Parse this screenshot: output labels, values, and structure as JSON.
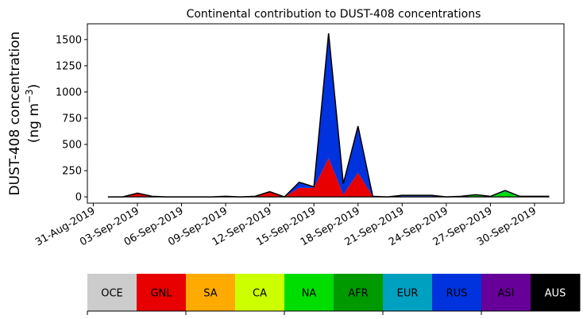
{
  "chart_data": {
    "type": "area",
    "title": "Continental contribution to DUST-408 concentrations",
    "ylabel_line1": "DUST-408 concentration",
    "ylabel_line2": "(ng m",
    "ylabel_sup": "−3",
    "ylabel_close": ")",
    "ylim": [
      -60,
      1650
    ],
    "yticks": [
      0,
      250,
      500,
      750,
      1000,
      1250,
      1500
    ],
    "xticks": [
      "31-Aug-2019",
      "03-Sep-2019",
      "06-Sep-2019",
      "09-Sep-2019",
      "12-Sep-2019",
      "15-Sep-2019",
      "18-Sep-2019",
      "21-Sep-2019",
      "24-Sep-2019",
      "27-Sep-2019",
      "30-Sep-2019"
    ],
    "x": [
      "2019-09-01",
      "2019-09-02",
      "2019-09-03",
      "2019-09-04",
      "2019-09-05",
      "2019-09-06",
      "2019-09-07",
      "2019-09-08",
      "2019-09-09",
      "2019-09-10",
      "2019-09-11",
      "2019-09-12",
      "2019-09-13",
      "2019-09-14",
      "2019-09-15",
      "2019-09-16",
      "2019-09-17",
      "2019-09-18",
      "2019-09-19",
      "2019-09-20",
      "2019-09-21",
      "2019-09-22",
      "2019-09-23",
      "2019-09-24",
      "2019-09-25",
      "2019-09-26",
      "2019-09-27",
      "2019-09-28",
      "2019-09-29",
      "2019-09-30",
      "2019-10-01"
    ],
    "x_tick_start": "2019-08-31",
    "x_tick_step_days": 3,
    "series": [
      {
        "name": "GNL",
        "color": "#e80000",
        "values": [
          0,
          0,
          35,
          5,
          0,
          0,
          0,
          0,
          5,
          0,
          5,
          45,
          0,
          85,
          85,
          370,
          20,
          230,
          5,
          0,
          0,
          5,
          0,
          0,
          0,
          0,
          0,
          0,
          0,
          0,
          0
        ]
      },
      {
        "name": "NA",
        "color": "#00dd00",
        "values": [
          0,
          0,
          0,
          0,
          0,
          0,
          0,
          0,
          0,
          0,
          0,
          0,
          0,
          0,
          0,
          0,
          0,
          0,
          0,
          0,
          0,
          0,
          0,
          0,
          5,
          15,
          0,
          50,
          0,
          0,
          0
        ]
      },
      {
        "name": "EUR",
        "color": "#00a0c0",
        "values": [
          0,
          0,
          0,
          0,
          0,
          0,
          0,
          0,
          0,
          0,
          0,
          0,
          0,
          0,
          0,
          0,
          0,
          0,
          0,
          0,
          5,
          0,
          5,
          0,
          0,
          0,
          0,
          5,
          0,
          0,
          0
        ]
      },
      {
        "name": "RUS",
        "color": "#0033dd",
        "values": [
          0,
          0,
          0,
          0,
          0,
          0,
          0,
          0,
          0,
          0,
          0,
          5,
          0,
          50,
          5,
          1180,
          100,
          440,
          0,
          0,
          5,
          5,
          5,
          0,
          0,
          0,
          0,
          0,
          0,
          0,
          0
        ]
      },
      {
        "name": "ASI",
        "color": "#660099",
        "values": [
          0,
          0,
          0,
          0,
          0,
          0,
          0,
          0,
          0,
          0,
          0,
          0,
          0,
          5,
          5,
          10,
          5,
          5,
          0,
          0,
          5,
          5,
          5,
          0,
          0,
          5,
          5,
          5,
          5,
          5,
          5
        ]
      }
    ]
  },
  "legend": [
    {
      "label": "OCE",
      "color": "#cccccc",
      "text_color": "#000000"
    },
    {
      "label": "GNL",
      "color": "#e80000",
      "text_color": "#000000"
    },
    {
      "label": "SA",
      "color": "#ffaa00",
      "text_color": "#000000"
    },
    {
      "label": "CA",
      "color": "#ccff00",
      "text_color": "#000000"
    },
    {
      "label": "NA",
      "color": "#00dd00",
      "text_color": "#000000"
    },
    {
      "label": "AFR",
      "color": "#009900",
      "text_color": "#000000"
    },
    {
      "label": "EUR",
      "color": "#00a0c0",
      "text_color": "#000000"
    },
    {
      "label": "RUS",
      "color": "#0033dd",
      "text_color": "#000000"
    },
    {
      "label": "ASI",
      "color": "#660099",
      "text_color": "#000000"
    },
    {
      "label": "AUS",
      "color": "#000000",
      "text_color": "#ffffff"
    }
  ]
}
